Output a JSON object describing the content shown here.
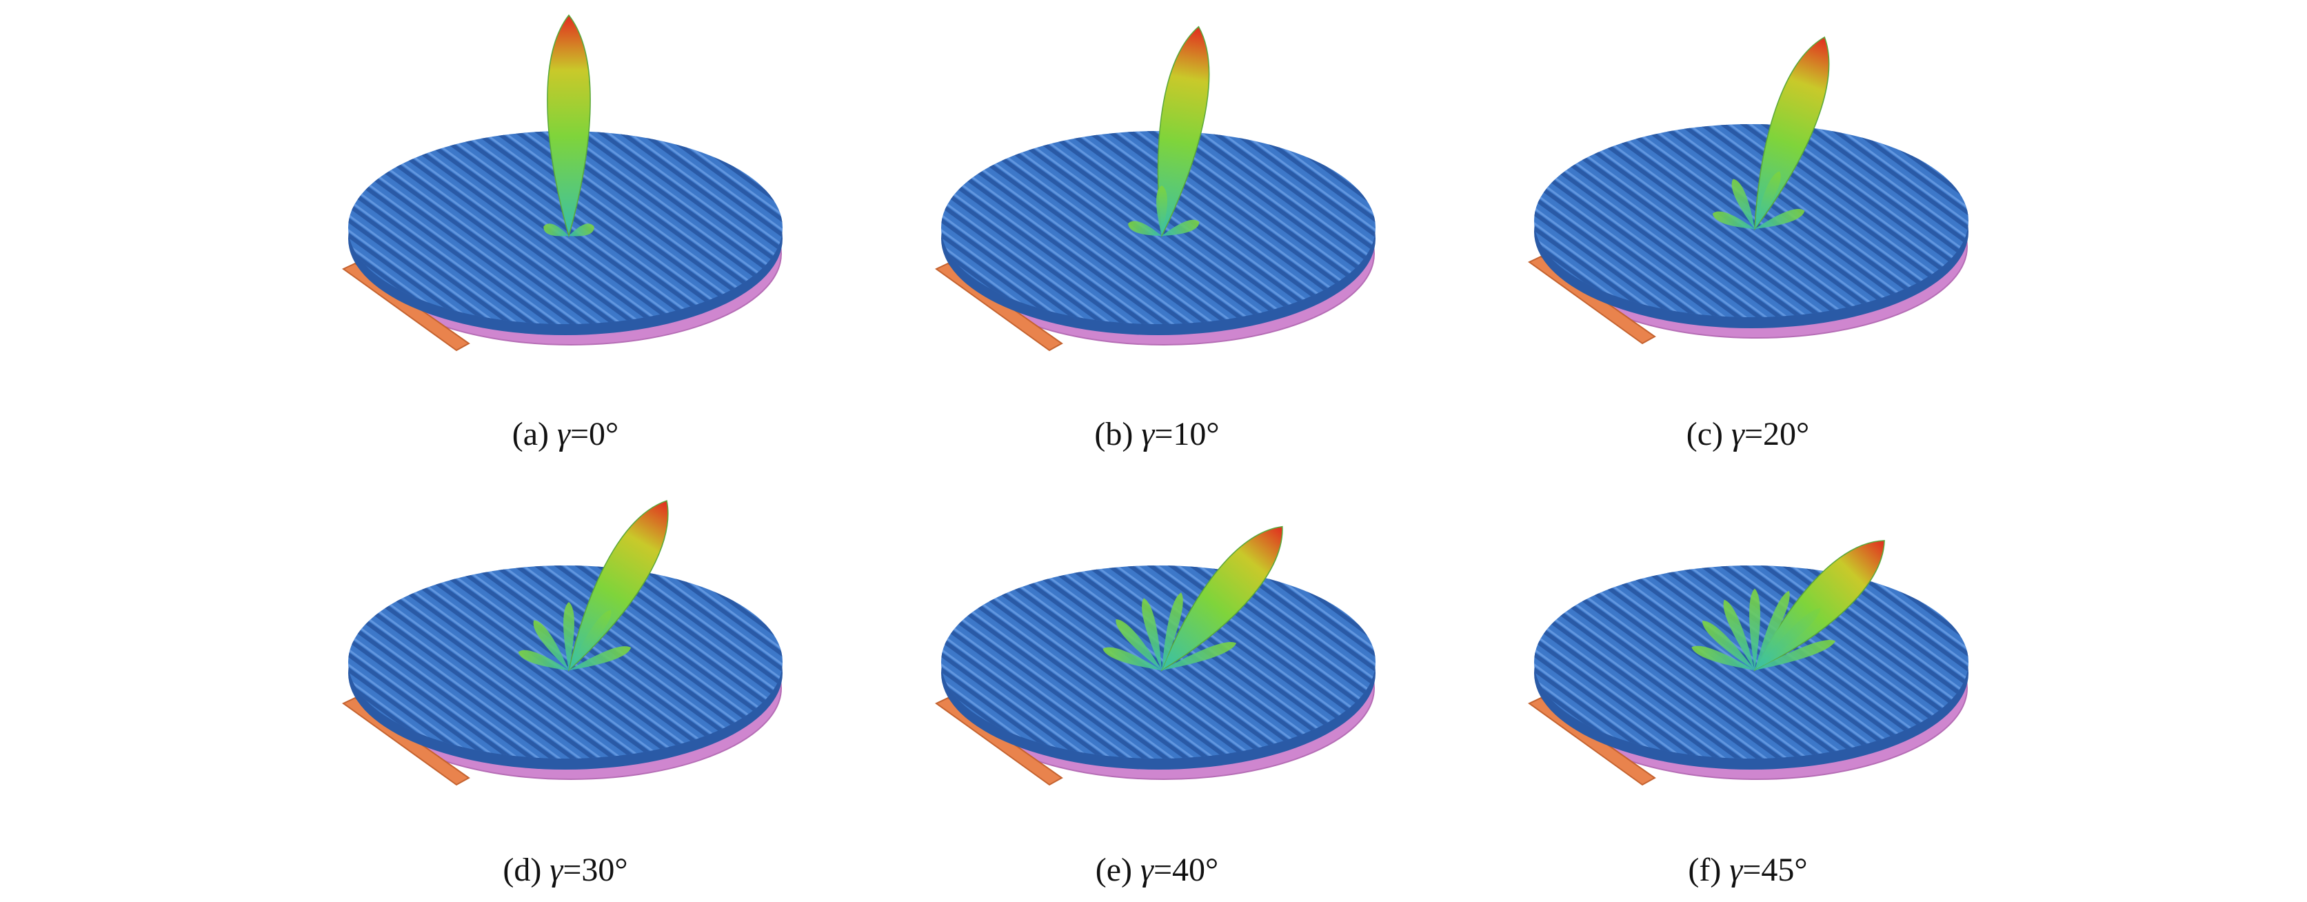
{
  "colors": {
    "grid_stripe": "#3d78c9",
    "grid_stripe_dark": "#2a5aa6",
    "grid_highlight": "#6ea1e6",
    "substrate": "#cf86cf",
    "substrate_edge": "#b56db5",
    "feed_strip": "#e9834d",
    "lobe_tip": "#e22b1f",
    "lobe_mid": "#7fd43b",
    "lobe_base": "#38c0a8"
  },
  "panels": [
    {
      "id": "a",
      "label": "(a) ",
      "gamma_symbol": "γ",
      "angle_text": "=0°",
      "tilt_deg": 0
    },
    {
      "id": "b",
      "label": "(b) ",
      "gamma_symbol": "γ",
      "angle_text": "=10°",
      "tilt_deg": 10
    },
    {
      "id": "c",
      "label": "(c) ",
      "gamma_symbol": "γ",
      "angle_text": "=20°",
      "tilt_deg": 20
    },
    {
      "id": "d",
      "label": "(d) ",
      "gamma_symbol": "γ",
      "angle_text": "=30°",
      "tilt_deg": 30
    },
    {
      "id": "e",
      "label": "(e) ",
      "gamma_symbol": "γ",
      "angle_text": "=40°",
      "tilt_deg": 40
    },
    {
      "id": "f",
      "label": "(f) ",
      "gamma_symbol": "γ",
      "angle_text": "=45°",
      "tilt_deg": 45
    }
  ]
}
